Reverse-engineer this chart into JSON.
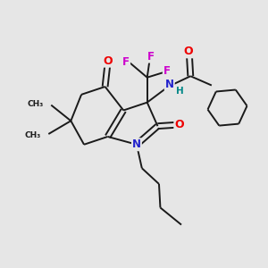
{
  "background_color": "#e6e6e6",
  "bond_color": "#1a1a1a",
  "bond_width": 1.4,
  "atom_colors": {
    "O": "#ee0000",
    "N": "#2222cc",
    "F": "#cc00cc",
    "H": "#008888",
    "C": "#1a1a1a"
  }
}
